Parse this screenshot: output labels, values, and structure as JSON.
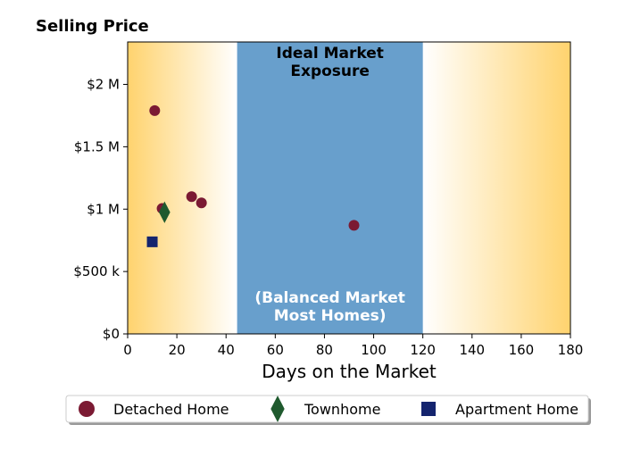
{
  "chart_data": {
    "type": "scatter",
    "title": "Selling Price",
    "xlabel": "Days on the Market",
    "ylabel": "",
    "xlim": [
      0,
      180
    ],
    "ylim": [
      0,
      2340000
    ],
    "x_ticks": [
      0,
      20,
      40,
      60,
      80,
      100,
      120,
      140,
      160,
      180
    ],
    "x_tick_labels": [
      "0",
      "20",
      "40",
      "60",
      "80",
      "100",
      "120",
      "140",
      "160",
      "180"
    ],
    "y_ticks": [
      0,
      500000,
      1000000,
      1500000,
      2000000
    ],
    "y_tick_labels": [
      "$0",
      "$500 k",
      "$1 M",
      "$1.5 M",
      "$2 M"
    ],
    "grid": false,
    "legend_position": "bottom",
    "shaded_band": {
      "x_range": [
        44.5,
        120
      ],
      "color": "#689fcc",
      "label_top": [
        "Ideal Market",
        "Exposure"
      ],
      "label_bottom": [
        "(Balanced Market",
        "Most Homes)"
      ]
    },
    "background_gradient": {
      "edge_color": "#ffd36e",
      "center_color": "#ffffff"
    },
    "series": [
      {
        "name": "Detached Home",
        "marker": "circle",
        "color": "#7b1a33",
        "points": [
          {
            "x": 11,
            "y": 1790000
          },
          {
            "x": 14,
            "y": 1005000
          },
          {
            "x": 26,
            "y": 1100000
          },
          {
            "x": 30,
            "y": 1050000
          },
          {
            "x": 92,
            "y": 870000
          }
        ]
      },
      {
        "name": "Townhome",
        "marker": "diamond",
        "color": "#1f5a2e",
        "points": [
          {
            "x": 15,
            "y": 975000
          }
        ]
      },
      {
        "name": "Apartment Home",
        "marker": "square",
        "color": "#14246e",
        "points": [
          {
            "x": 10,
            "y": 738000
          }
        ]
      }
    ]
  }
}
